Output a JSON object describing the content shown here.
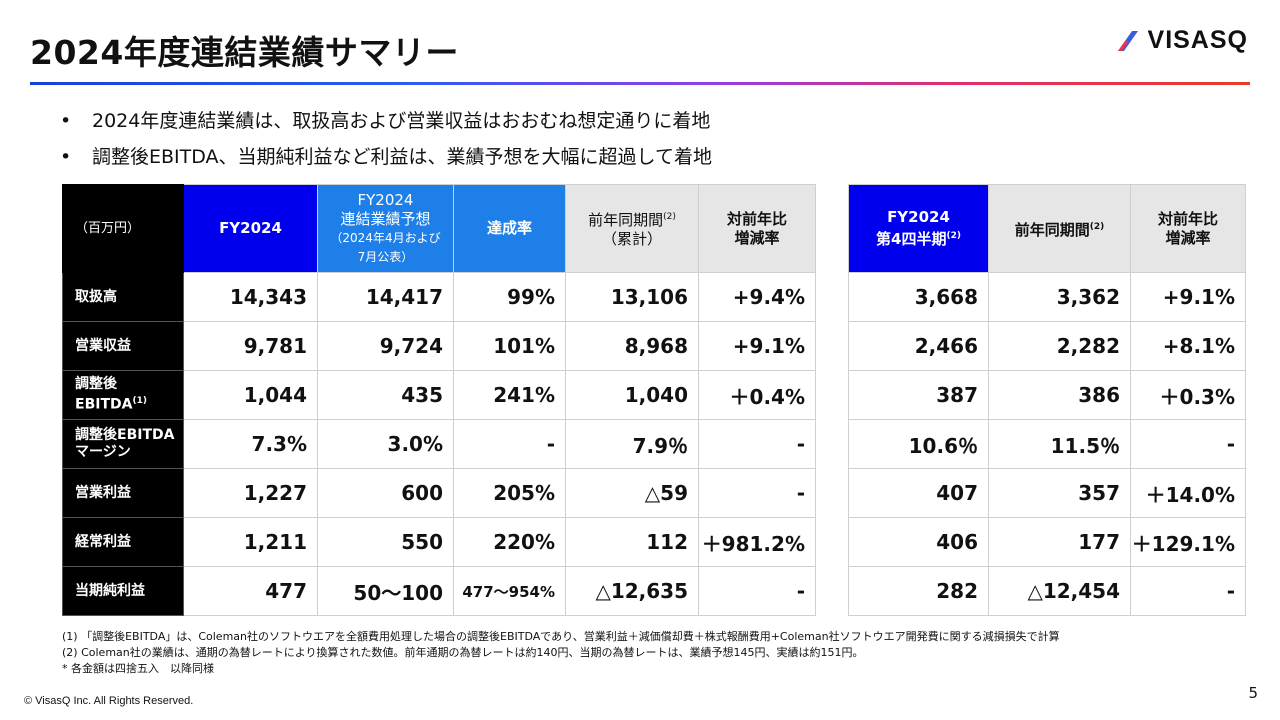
{
  "title": "2024年度連結業績サマリー",
  "logo": {
    "text": "VISASQ",
    "colors": [
      "#3b5bdb",
      "#e8364a"
    ]
  },
  "bullets": [
    "2024年度連結業績は、取扱高および営業収益はおおむね想定通りに着地",
    "調整後EBITDA、当期純利益など利益は、業績予想を大幅に超過して着地"
  ],
  "main_table": {
    "headers": {
      "unit": "（百万円）",
      "fy": "FY2024",
      "forecast_line1": "FY2024",
      "forecast_line2": "連結業績予想",
      "forecast_sub1": "（2024年4月および",
      "forecast_sub2": "7月公表）",
      "achievement": "達成率",
      "prior": "前年同期間",
      "prior_ref": "(2)",
      "prior_sub": "（累計）",
      "yoy_line1": "対前年比",
      "yoy_line2": "増減率"
    },
    "rows": [
      {
        "label": "取扱高",
        "fy": "14,343",
        "forecast": "14,417",
        "achievement": "99%",
        "prior": "13,106",
        "yoy": "+9.4%"
      },
      {
        "label": "営業収益",
        "fy": "9,781",
        "forecast": "9,724",
        "achievement": "101%",
        "prior": "8,968",
        "yoy": "+9.1%"
      },
      {
        "label_line1": "調整後",
        "label_line2": "EBITDA",
        "label_ref": "(1)",
        "fy": "1,044",
        "forecast": "435",
        "achievement": "241%",
        "prior": "1,040",
        "yoy": "＋0.4%"
      },
      {
        "label_line1": "調整後EBITDA",
        "label_line2": "マージン",
        "fy": "7.3%",
        "forecast": "3.0%",
        "achievement": "-",
        "prior": "7.9％",
        "yoy": "-"
      },
      {
        "label": "営業利益",
        "fy": "1,227",
        "forecast": "600",
        "achievement": "205%",
        "prior": "△59",
        "yoy": "-"
      },
      {
        "label": "経常利益",
        "fy": "1,211",
        "forecast": "550",
        "achievement": "220%",
        "prior": "112",
        "yoy": "＋981.2%"
      },
      {
        "label": "当期純利益",
        "fy": "477",
        "forecast": "50〜100",
        "achievement": "477〜954%",
        "prior": "△12,635",
        "yoy": "-"
      }
    ]
  },
  "q4_table": {
    "headers": {
      "q4_line1": "FY2024",
      "q4_line2": "第4四半期",
      "q4_ref": "(2)",
      "prior": "前年同期間",
      "prior_ref": "(2)",
      "yoy_line1": "対前年比",
      "yoy_line2": "増減率"
    },
    "rows": [
      {
        "q4": "3,668",
        "prior": "3,362",
        "yoy": "+9.1%"
      },
      {
        "q4": "2,466",
        "prior": "2,282",
        "yoy": "+8.1%"
      },
      {
        "q4": "387",
        "prior": "386",
        "yoy": "＋0.3%"
      },
      {
        "q4": "10.6％",
        "prior": "11.5％",
        "yoy": "-"
      },
      {
        "q4": "407",
        "prior": "357",
        "yoy": "＋14.0%"
      },
      {
        "q4": "406",
        "prior": "177",
        "yoy": "＋129.1%"
      },
      {
        "q4": "282",
        "prior": "△12,454",
        "yoy": "-"
      }
    ]
  },
  "footnotes": [
    "(1) 「調整後EBITDA」は、Coleman社のソフトウエアを全額費用処理した場合の調整後EBITDAであり、営業利益＋減価償却費＋株式報酬費用+Coleman社ソフトウエア開発費に関する減損損失で計算",
    "(2) Coleman社の業績は、通期の為替レートにより換算された数値。前年通期の為替レートは約140円、当期の為替レートは、業績予想145円、実績は約151円。",
    "* 各金額は四捨五入　以降同様"
  ],
  "copyright": "© VisasQ Inc. All Rights Reserved.",
  "page_number": "5"
}
